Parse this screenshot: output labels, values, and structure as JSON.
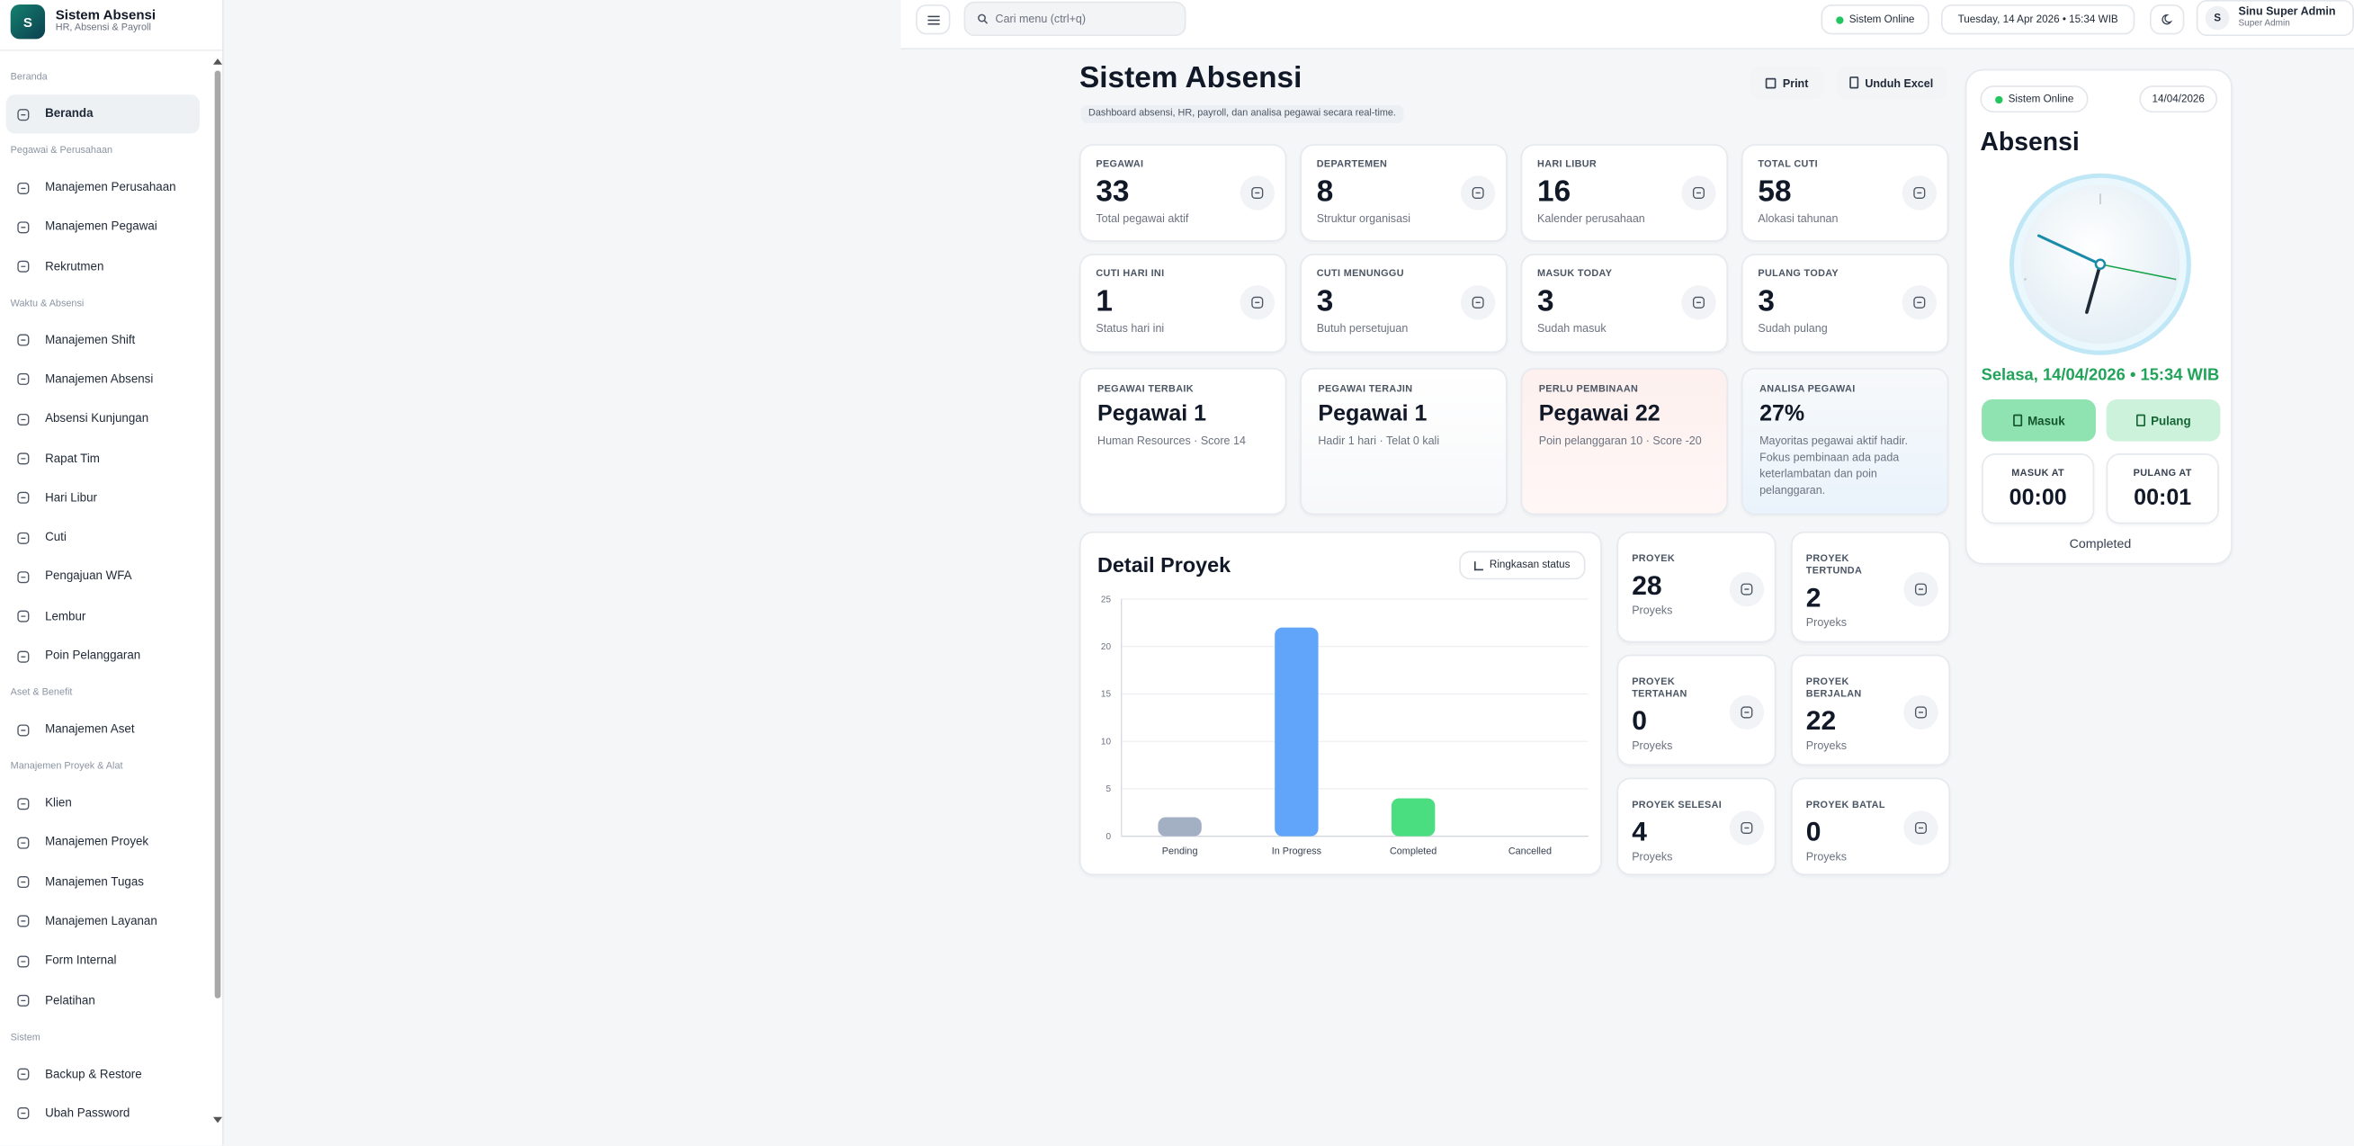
{
  "sidebar": {
    "logo": "S",
    "title": "Sistem Absensi",
    "subtitle": "HR, Absensi & Payroll",
    "sections": [
      {
        "title": "Beranda",
        "items": [
          "Beranda"
        ]
      },
      {
        "title": "Pegawai & Perusahaan",
        "items": [
          "Manajemen Perusahaan",
          "Manajemen Pegawai",
          "Rekrutmen"
        ]
      },
      {
        "title": "Waktu & Absensi",
        "items": [
          "Manajemen Shift",
          "Manajemen Absensi",
          "Absensi Kunjungan",
          "Rapat Tim",
          "Hari Libur",
          "Cuti",
          "Pengajuan WFA",
          "Lembur",
          "Poin Pelanggaran"
        ]
      },
      {
        "title": "Aset & Benefit",
        "items": [
          "Manajemen Aset"
        ]
      },
      {
        "title": "Manajemen Proyek & Alat",
        "items": [
          "Klien",
          "Manajemen Proyek",
          "Manajemen Tugas",
          "Manajemen Layanan",
          "Form Internal",
          "Pelatihan"
        ]
      },
      {
        "title": "Sistem",
        "items": [
          "Backup & Restore",
          "Ubah Password"
        ]
      }
    ]
  },
  "topbar": {
    "search": "Cari menu (ctrl+q)",
    "status": "Sistem Online",
    "datetime": "Tuesday, 14 Apr 2026 • 15:34 WIB",
    "user_initial": "S",
    "user_name": "Sinu Super Admin",
    "user_role": "Super Admin"
  },
  "header": {
    "title": "Sistem Absensi",
    "subtitle": "Dashboard absensi, HR, payroll, dan analisa pegawai secara real-time.",
    "buttons": [
      "Print",
      "Unduh Excel"
    ]
  },
  "stats": [
    {
      "label": "PEGAWAI",
      "value": 33,
      "note": "Total pegawai aktif"
    },
    {
      "label": "DEPARTEMEN",
      "value": 8,
      "note": "Struktur organisasi"
    },
    {
      "label": "HARI LIBUR",
      "value": 16,
      "note": "Kalender perusahaan"
    },
    {
      "label": "TOTAL CUTI",
      "value": 58,
      "note": "Alokasi tahunan"
    },
    {
      "label": "CUTI HARI INI",
      "value": 1,
      "note": "Status hari ini"
    },
    {
      "label": "CUTI MENUNGGU",
      "value": 3,
      "note": "Butuh persetujuan"
    },
    {
      "label": "MASUK TODAY",
      "value": 3,
      "note": "Sudah masuk"
    },
    {
      "label": "PULANG TODAY",
      "value": 3,
      "note": "Sudah pulang"
    }
  ],
  "highlights": [
    {
      "label": "PEGAWAI TERBAIK",
      "value": "Pegawai 1",
      "note": "Human Resources · Score 14"
    },
    {
      "label": "PEGAWAI TERAJIN",
      "value": "Pegawai 1",
      "note": "Hadir 1 hari · Telat 0 kali"
    },
    {
      "label": "PERLU PEMBINAAN",
      "value": "Pegawai 22",
      "note": "Poin pelanggaran 10 · Score -20"
    },
    {
      "label": "ANALISA PEGAWAI",
      "value": "27%",
      "note": "Mayoritas pegawai aktif hadir. Fokus pembinaan ada pada keterlambatan dan poin pelanggaran."
    }
  ],
  "chart_data": {
    "type": "bar",
    "title": "Detail Proyek",
    "action": "Ringkasan status",
    "categories": [
      "Pending",
      "In Progress",
      "Completed",
      "Cancelled"
    ],
    "values": [
      2,
      22,
      4,
      0
    ],
    "colors": [
      "#a3afc2",
      "#60a5fa",
      "#4ade80",
      "#f87171"
    ],
    "ylim": [
      0,
      25
    ],
    "yticks": [
      0,
      5,
      10,
      15,
      20,
      25
    ],
    "grid": true
  },
  "projects": [
    {
      "label": "PROYEK",
      "value": 28,
      "note": "Proyeks"
    },
    {
      "label": "PROYEK TERTUNDA",
      "value": 2,
      "note": "Proyeks"
    },
    {
      "label": "PROYEK TERTAHAN",
      "value": 0,
      "note": "Proyeks"
    },
    {
      "label": "PROYEK BERJALAN",
      "value": 22,
      "note": "Proyeks"
    },
    {
      "label": "PROYEK SELESAI",
      "value": 4,
      "note": "Proyeks"
    },
    {
      "label": "PROYEK BATAL",
      "value": 0,
      "note": "Proyeks"
    }
  ],
  "attendance": {
    "status": "Sistem Online",
    "date": "14/04/2026",
    "title": "Absensi",
    "datetime": "Selasa, 14/04/2026 • 15:34 WIB",
    "buttons": [
      "Masuk",
      "Pulang"
    ],
    "in_label": "MASUK AT",
    "in_time": "00:00",
    "out_label": "PULANG AT",
    "out_time": "00:01",
    "state": "Completed"
  }
}
